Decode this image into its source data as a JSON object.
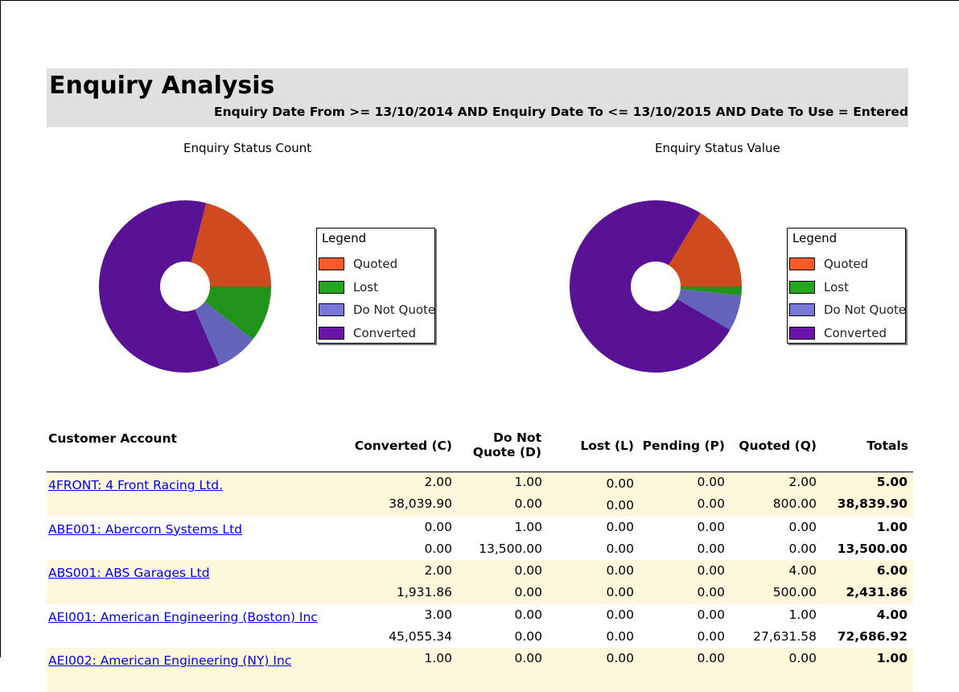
{
  "report": {
    "title": "Enquiry Analysis",
    "criteria": "Enquiry Date From >= 13/10/2014 AND  Enquiry Date To <= 13/10/2015 AND  Date To Use = Entered"
  },
  "colors": {
    "quoted": "#d04a20",
    "lost": "#21931a",
    "do_not_quote": "#6464ba",
    "converted": "#5a1294",
    "legend_quoted": "#ff5a28",
    "legend_lost": "#21a81e",
    "legend_do_not_quote": "#7878d8",
    "legend_converted": "#6a14aa",
    "header_band": "#e0e0e0",
    "alt_row": "#fdf7dc",
    "link": "#0000ee"
  },
  "legend": {
    "title": "Legend",
    "items": [
      "Quoted",
      "Lost",
      "Do Not Quote",
      "Converted"
    ]
  },
  "chart_data": [
    {
      "type": "pie",
      "title": "Enquiry Status Count",
      "categories": [
        "Quoted",
        "Converted",
        "Do Not Quote",
        "Lost"
      ],
      "values": [
        8,
        23,
        3,
        4
      ],
      "donut": true,
      "legend_position": "right"
    },
    {
      "type": "pie",
      "title": "Enquiry Status Value",
      "categories": [
        "Quoted",
        "Converted",
        "Do Not Quote",
        "Lost"
      ],
      "values": [
        16.3,
        75.3,
        6.7,
        1.7
      ],
      "donut": true,
      "legend_position": "right"
    }
  ],
  "table": {
    "headers": {
      "customer": "Customer Account",
      "converted": "Converted (C)",
      "dnq_line1": "Do Not",
      "dnq_line2": "Quote (D)",
      "lost": "Lost (L)",
      "pending": "Pending (P)",
      "quoted": "Quoted (Q)",
      "totals": "Totals"
    },
    "rows": [
      {
        "customer": "4FRONT: 4 Front Racing Ltd.",
        "count": [
          "2.00",
          "1.00",
          "0.00",
          "0.00",
          "2.00",
          "5.00"
        ],
        "value": [
          "38,039.90",
          "0.00",
          "0.00",
          "0.00",
          "800.00",
          "38,839.90"
        ]
      },
      {
        "customer": "ABE001: Abercorn Systems Ltd",
        "count": [
          "0.00",
          "1.00",
          "0.00",
          "0.00",
          "0.00",
          "1.00"
        ],
        "value": [
          "0.00",
          "13,500.00",
          "0.00",
          "0.00",
          "0.00",
          "13,500.00"
        ]
      },
      {
        "customer": "ABS001: ABS Garages Ltd",
        "count": [
          "2.00",
          "0.00",
          "0.00",
          "0.00",
          "4.00",
          "6.00"
        ],
        "value": [
          "1,931.86",
          "0.00",
          "0.00",
          "0.00",
          "500.00",
          "2,431.86"
        ]
      },
      {
        "customer": "AEI001: American Engineering (Boston) Inc",
        "count": [
          "3.00",
          "0.00",
          "0.00",
          "0.00",
          "1.00",
          "4.00"
        ],
        "value": [
          "45,055.34",
          "0.00",
          "0.00",
          "0.00",
          "27,631.58",
          "72,686.92"
        ]
      },
      {
        "customer": "AEI002: American Engineering (NY) Inc",
        "count": [
          "1.00",
          "0.00",
          "0.00",
          "0.00",
          "0.00",
          "1.00"
        ],
        "value": [
          "",
          "",
          "",
          "",
          "",
          ""
        ]
      }
    ]
  }
}
